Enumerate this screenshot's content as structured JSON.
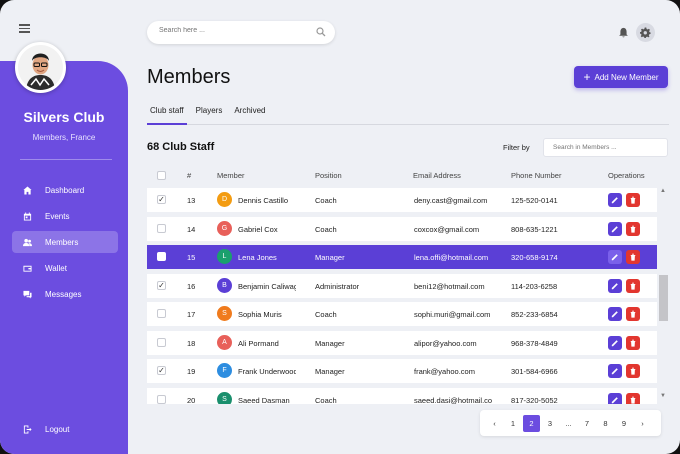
{
  "sidebar": {
    "club_name": "Silvers Club",
    "club_subtitle": "Members, France",
    "items": [
      {
        "label": "Dashboard",
        "icon": "home-icon",
        "active": false
      },
      {
        "label": "Events",
        "icon": "calendar-icon",
        "active": false
      },
      {
        "label": "Members",
        "icon": "users-icon",
        "active": true
      },
      {
        "label": "Wallet",
        "icon": "wallet-icon",
        "active": false
      },
      {
        "label": "Messages",
        "icon": "messages-icon",
        "active": false
      }
    ],
    "logout_label": "Logout"
  },
  "header": {
    "search_placeholder": "Search here ..."
  },
  "main": {
    "title": "Members",
    "add_button_label": "Add New Member",
    "tabs": [
      {
        "label": "Club staff",
        "active": true
      },
      {
        "label": "Players",
        "active": false
      },
      {
        "label": "Archived",
        "active": false
      }
    ],
    "staff_count": "68 Club Staff",
    "filter_label": "Filter by",
    "filter_placeholder": "Search in Members ..."
  },
  "table": {
    "columns": [
      "#",
      "Member",
      "Position",
      "Email Address",
      "Phone Number",
      "Operations"
    ],
    "rows": [
      {
        "num": "13",
        "initial": "D",
        "color": "#f39c12",
        "name": "Dennis Castillo",
        "position": "Coach",
        "email": "deny.cast@gmail.com",
        "phone": "125-520-0141",
        "checked": true,
        "selected": false
      },
      {
        "num": "14",
        "initial": "G",
        "color": "#e8605a",
        "name": "Gabriel Cox",
        "position": "Coach",
        "email": "coxcox@gmail.com",
        "phone": "808-635-1221",
        "checked": false,
        "selected": false
      },
      {
        "num": "15",
        "initial": "L",
        "color": "#1aa06d",
        "name": "Lena Jones",
        "position": "Manager",
        "email": "lena.offi@hotmail.com",
        "phone": "320-658-9174",
        "checked": false,
        "selected": true
      },
      {
        "num": "16",
        "initial": "B",
        "color": "#5b3fd6",
        "name": "Benjamin Caliwag",
        "position": "Administrator",
        "email": "beni12@hotmail.com",
        "phone": "114-203-6258",
        "checked": true,
        "selected": false
      },
      {
        "num": "17",
        "initial": "S",
        "color": "#f07b1d",
        "name": "Sophia Muris",
        "position": "Coach",
        "email": "sophi.muri@gmail.com",
        "phone": "852-233-6854",
        "checked": false,
        "selected": false
      },
      {
        "num": "18",
        "initial": "A",
        "color": "#e8605a",
        "name": "Ali Pormand",
        "position": "Manager",
        "email": "alipor@yahoo.com",
        "phone": "968-378-4849",
        "checked": false,
        "selected": false
      },
      {
        "num": "19",
        "initial": "F",
        "color": "#2d8de0",
        "name": "Frank Underwood",
        "position": "Manager",
        "email": "frank@yahoo.com",
        "phone": "301-584-6966",
        "checked": true,
        "selected": false
      },
      {
        "num": "20",
        "initial": "S",
        "color": "#1a8f6d",
        "name": "Saeed Dasman",
        "position": "Coach",
        "email": "saeed.dasi@hotmail.com",
        "phone": "817-320-5052",
        "checked": false,
        "selected": false
      }
    ]
  },
  "pagination": {
    "pages": [
      "1",
      "2",
      "3",
      "...",
      "7",
      "8",
      "9"
    ],
    "active": "2",
    "prev": "‹",
    "next": "›"
  }
}
